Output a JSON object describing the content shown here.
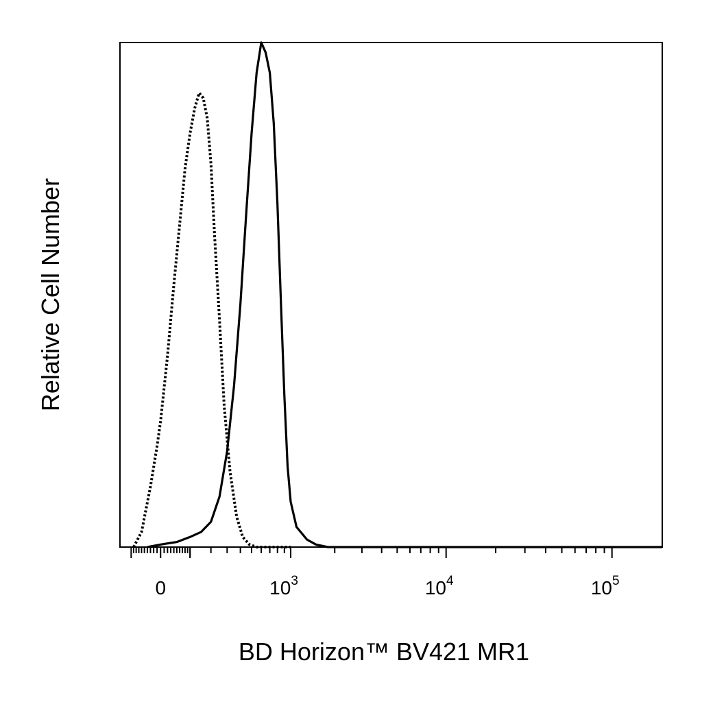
{
  "chart_data": {
    "type": "area",
    "xlabel": "BD Horizon™ BV421 MR1",
    "ylabel": "Relative Cell Number",
    "x_scale": "biexponential",
    "xlim": [
      -150,
      200000
    ],
    "ylim": [
      0,
      100
    ],
    "x_ticks": [
      {
        "value": 0,
        "base": "0",
        "exp": ""
      },
      {
        "value": 1000,
        "base": "10",
        "exp": "3"
      },
      {
        "value": 10000,
        "base": "10",
        "exp": "4"
      },
      {
        "value": 100000,
        "base": "10",
        "exp": "5"
      }
    ],
    "grid": false,
    "legend": "none",
    "series": [
      {
        "style": "dotted",
        "color": "#000000",
        "x": [
          -90,
          -60,
          -30,
          -10,
          0,
          20,
          40,
          60,
          80,
          100,
          120,
          140,
          160,
          180,
          200,
          220,
          250,
          280,
          320,
          370,
          420,
          480,
          550,
          620,
          700,
          800,
          1000
        ],
        "y": [
          0,
          3,
          12,
          20,
          25,
          38,
          52,
          64,
          75,
          82,
          87,
          90,
          89,
          85,
          76,
          62,
          45,
          28,
          15,
          6,
          2,
          0.5,
          0,
          0,
          0,
          0,
          0
        ]
      },
      {
        "style": "solid",
        "color": "#000000",
        "x": [
          -40,
          0,
          50,
          100,
          150,
          200,
          250,
          300,
          350,
          400,
          450,
          500,
          550,
          600,
          650,
          700,
          750,
          800,
          850,
          900,
          950,
          1000,
          1100,
          1300,
          1500,
          1800,
          2500,
          200000
        ],
        "y": [
          0,
          0.5,
          1,
          2,
          3,
          5,
          10,
          19,
          32,
          48,
          66,
          82,
          94,
          100,
          98,
          94,
          84,
          68,
          48,
          30,
          16,
          9,
          4,
          1.5,
          0.5,
          0,
          0,
          0
        ]
      }
    ]
  }
}
